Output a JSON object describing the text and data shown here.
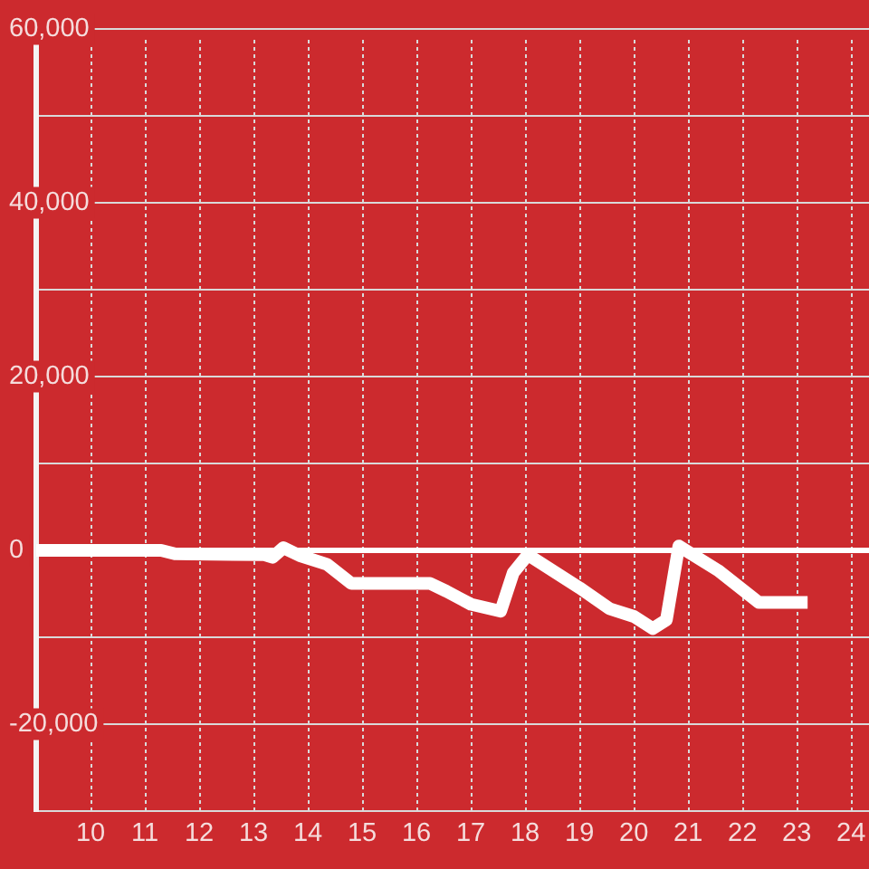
{
  "chart_data": {
    "type": "line",
    "x": [
      9,
      11.3,
      11.55,
      13.2,
      13.35,
      13.55,
      13.85,
      14.35,
      14.8,
      16.25,
      16.55,
      17.0,
      17.55,
      17.78,
      18.05,
      19.0,
      19.55,
      20.0,
      20.35,
      20.6,
      20.83,
      21.55,
      22.3,
      23.2
    ],
    "series": [
      {
        "color": "#ffffff",
        "values": [
          0,
          0,
          -400,
          -500,
          -800,
          300,
          -600,
          -1600,
          -3800,
          -3800,
          -4700,
          -6200,
          -7000,
          -2600,
          -500,
          -4300,
          -6700,
          -7600,
          -9000,
          -8000,
          500,
          -2300,
          -6000,
          -6000
        ]
      }
    ],
    "xlim": [
      9,
      24.33
    ],
    "xticks": [
      10,
      11,
      12,
      13,
      14,
      15,
      16,
      17,
      18,
      19,
      20,
      21,
      22,
      23,
      24
    ],
    "ylim": [
      -30000,
      60000
    ],
    "yticks": [
      {
        "value": 60000,
        "label": "60,000"
      },
      {
        "value": 50000,
        "label": null
      },
      {
        "value": 40000,
        "label": "40,000"
      },
      {
        "value": 30000,
        "label": null
      },
      {
        "value": 20000,
        "label": "20,000"
      },
      {
        "value": 10000,
        "label": null
      },
      0,
      {
        "value": -10000,
        "label": null
      },
      {
        "value": -20000,
        "label": "-20,000"
      },
      {
        "value": -30000,
        "label": null
      }
    ],
    "grid": true,
    "ref_lines": [
      {
        "axis": "y",
        "value": 0,
        "color": "#ffffff"
      }
    ],
    "marker": "none",
    "line_style": "solid"
  }
}
